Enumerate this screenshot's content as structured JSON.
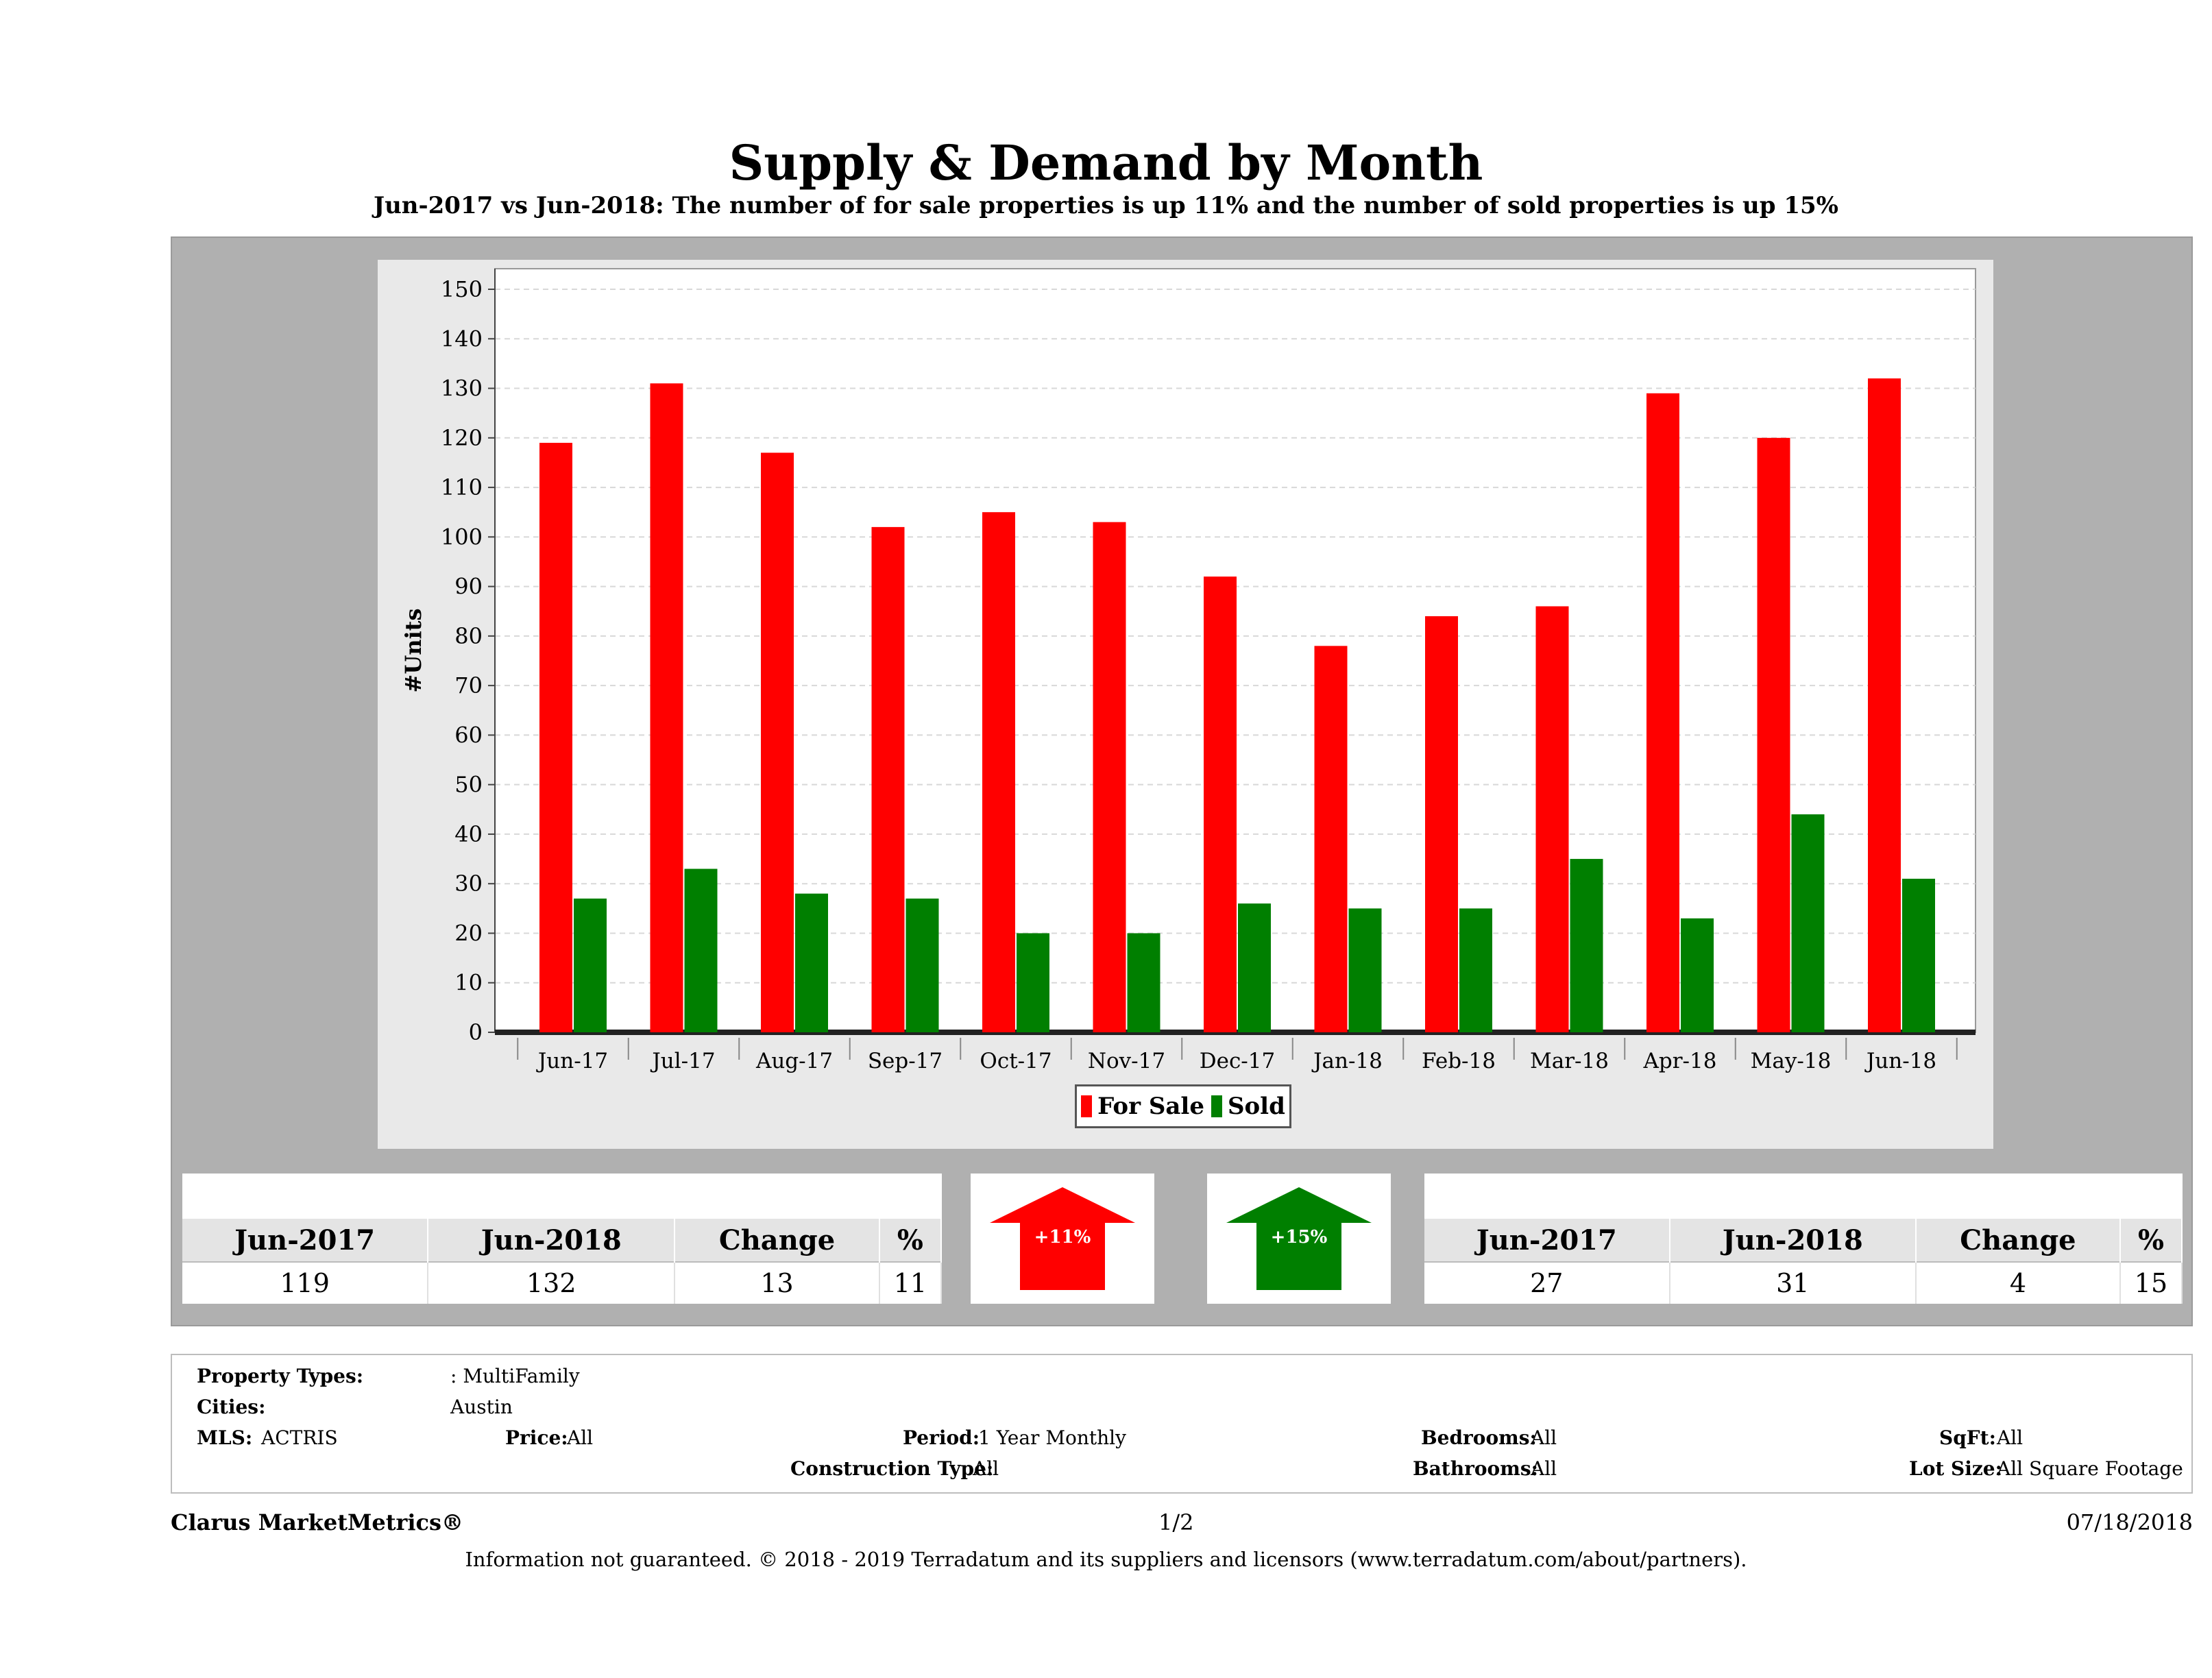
{
  "title": "Supply & Demand by Month",
  "subtitle": "Jun-2017 vs Jun-2018: The number of for sale properties is up 11% and the number of sold properties is up 15%",
  "chart_data": {
    "type": "bar",
    "categories": [
      "Jun-17",
      "Jul-17",
      "Aug-17",
      "Sep-17",
      "Oct-17",
      "Nov-17",
      "Dec-17",
      "Jan-18",
      "Feb-18",
      "Mar-18",
      "Apr-18",
      "May-18",
      "Jun-18"
    ],
    "series": [
      {
        "name": "For Sale",
        "color": "#ff0000",
        "values": [
          119,
          131,
          117,
          102,
          105,
          103,
          92,
          78,
          84,
          86,
          129,
          120,
          132
        ]
      },
      {
        "name": "Sold",
        "color": "#007f00",
        "values": [
          27,
          33,
          28,
          27,
          20,
          20,
          26,
          25,
          25,
          35,
          23,
          44,
          31
        ]
      }
    ],
    "ylabel": "#Units",
    "ylim": [
      0,
      150
    ],
    "yticks": [
      0,
      10,
      20,
      30,
      40,
      50,
      60,
      70,
      80,
      90,
      100,
      110,
      120,
      130,
      140,
      150
    ],
    "grid": true,
    "legend_position": "bottom-center"
  },
  "for_sale_stats": {
    "headers": [
      "Jun-2017",
      "Jun-2018",
      "Change",
      "%"
    ],
    "values": [
      "119",
      "132",
      "13",
      "11"
    ],
    "arrow_label": "+11%",
    "arrow_color": "#ff0000"
  },
  "sold_stats": {
    "headers": [
      "Jun-2017",
      "Jun-2018",
      "Change",
      "%"
    ],
    "values": [
      "27",
      "31",
      "4",
      "15"
    ],
    "arrow_label": "+15%",
    "arrow_color": "#007f00"
  },
  "criteria": {
    "property_types_label": "Property Types:",
    "property_types_value": ": MultiFamily",
    "cities_label": "Cities:",
    "cities_value": "Austin",
    "mls_label": "MLS:",
    "mls_value": "ACTRIS",
    "price_label": "Price:",
    "price_value": "All",
    "period_label": "Period:",
    "period_value": "1 Year Monthly",
    "construction_label": "Construction Type:",
    "construction_value": "All",
    "bedrooms_label": "Bedrooms:",
    "bedrooms_value": "All",
    "bathrooms_label": "Bathrooms:",
    "bathrooms_value": "All",
    "sqft_label": "SqFt:",
    "sqft_value": "All",
    "lotsize_label": "Lot Size:",
    "lotsize_value": "All Square Footage"
  },
  "footer": {
    "brand": "Clarus MarketMetrics®",
    "page": "1/2",
    "date": "07/18/2018",
    "disclaimer": "Information not guaranteed. © 2018 - 2019 Terradatum and its suppliers and licensors (www.terradatum.com/about/partners)."
  }
}
